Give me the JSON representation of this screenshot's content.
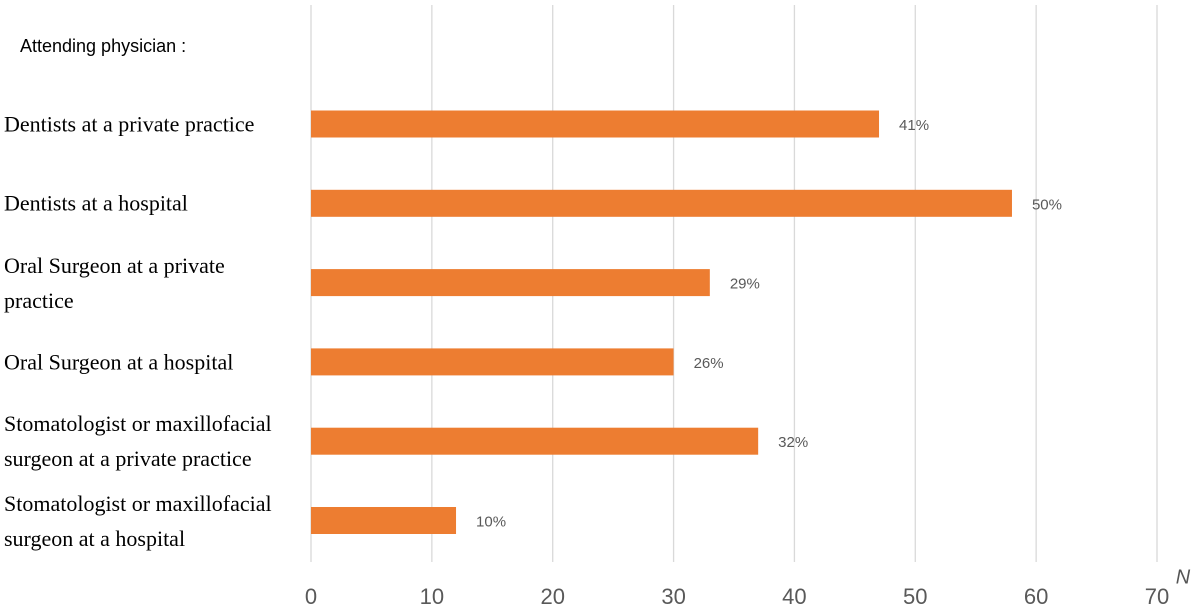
{
  "chart_data": {
    "type": "bar",
    "orientation": "horizontal",
    "y_axis_title": "Attending physician :",
    "x_axis_label": "N",
    "categories": [
      "Dentists at a private practice",
      "Dentists at a hospital",
      "Oral Surgeon at a private practice",
      "Oral Surgeon at a hospital",
      "Stomatologist or maxillofacial surgeon at a private practice",
      "Stomatologist or maxillofacial surgeon at a hospital"
    ],
    "values": [
      47,
      58,
      33,
      30,
      37,
      12
    ],
    "percent_labels": [
      "41%",
      "50%",
      "29%",
      "26%",
      "32%",
      "10%"
    ],
    "color": "#ed7d31",
    "xlim": [
      0,
      70
    ],
    "xticks": [
      0,
      10,
      20,
      30,
      40,
      50,
      60,
      70
    ],
    "grid": true
  }
}
